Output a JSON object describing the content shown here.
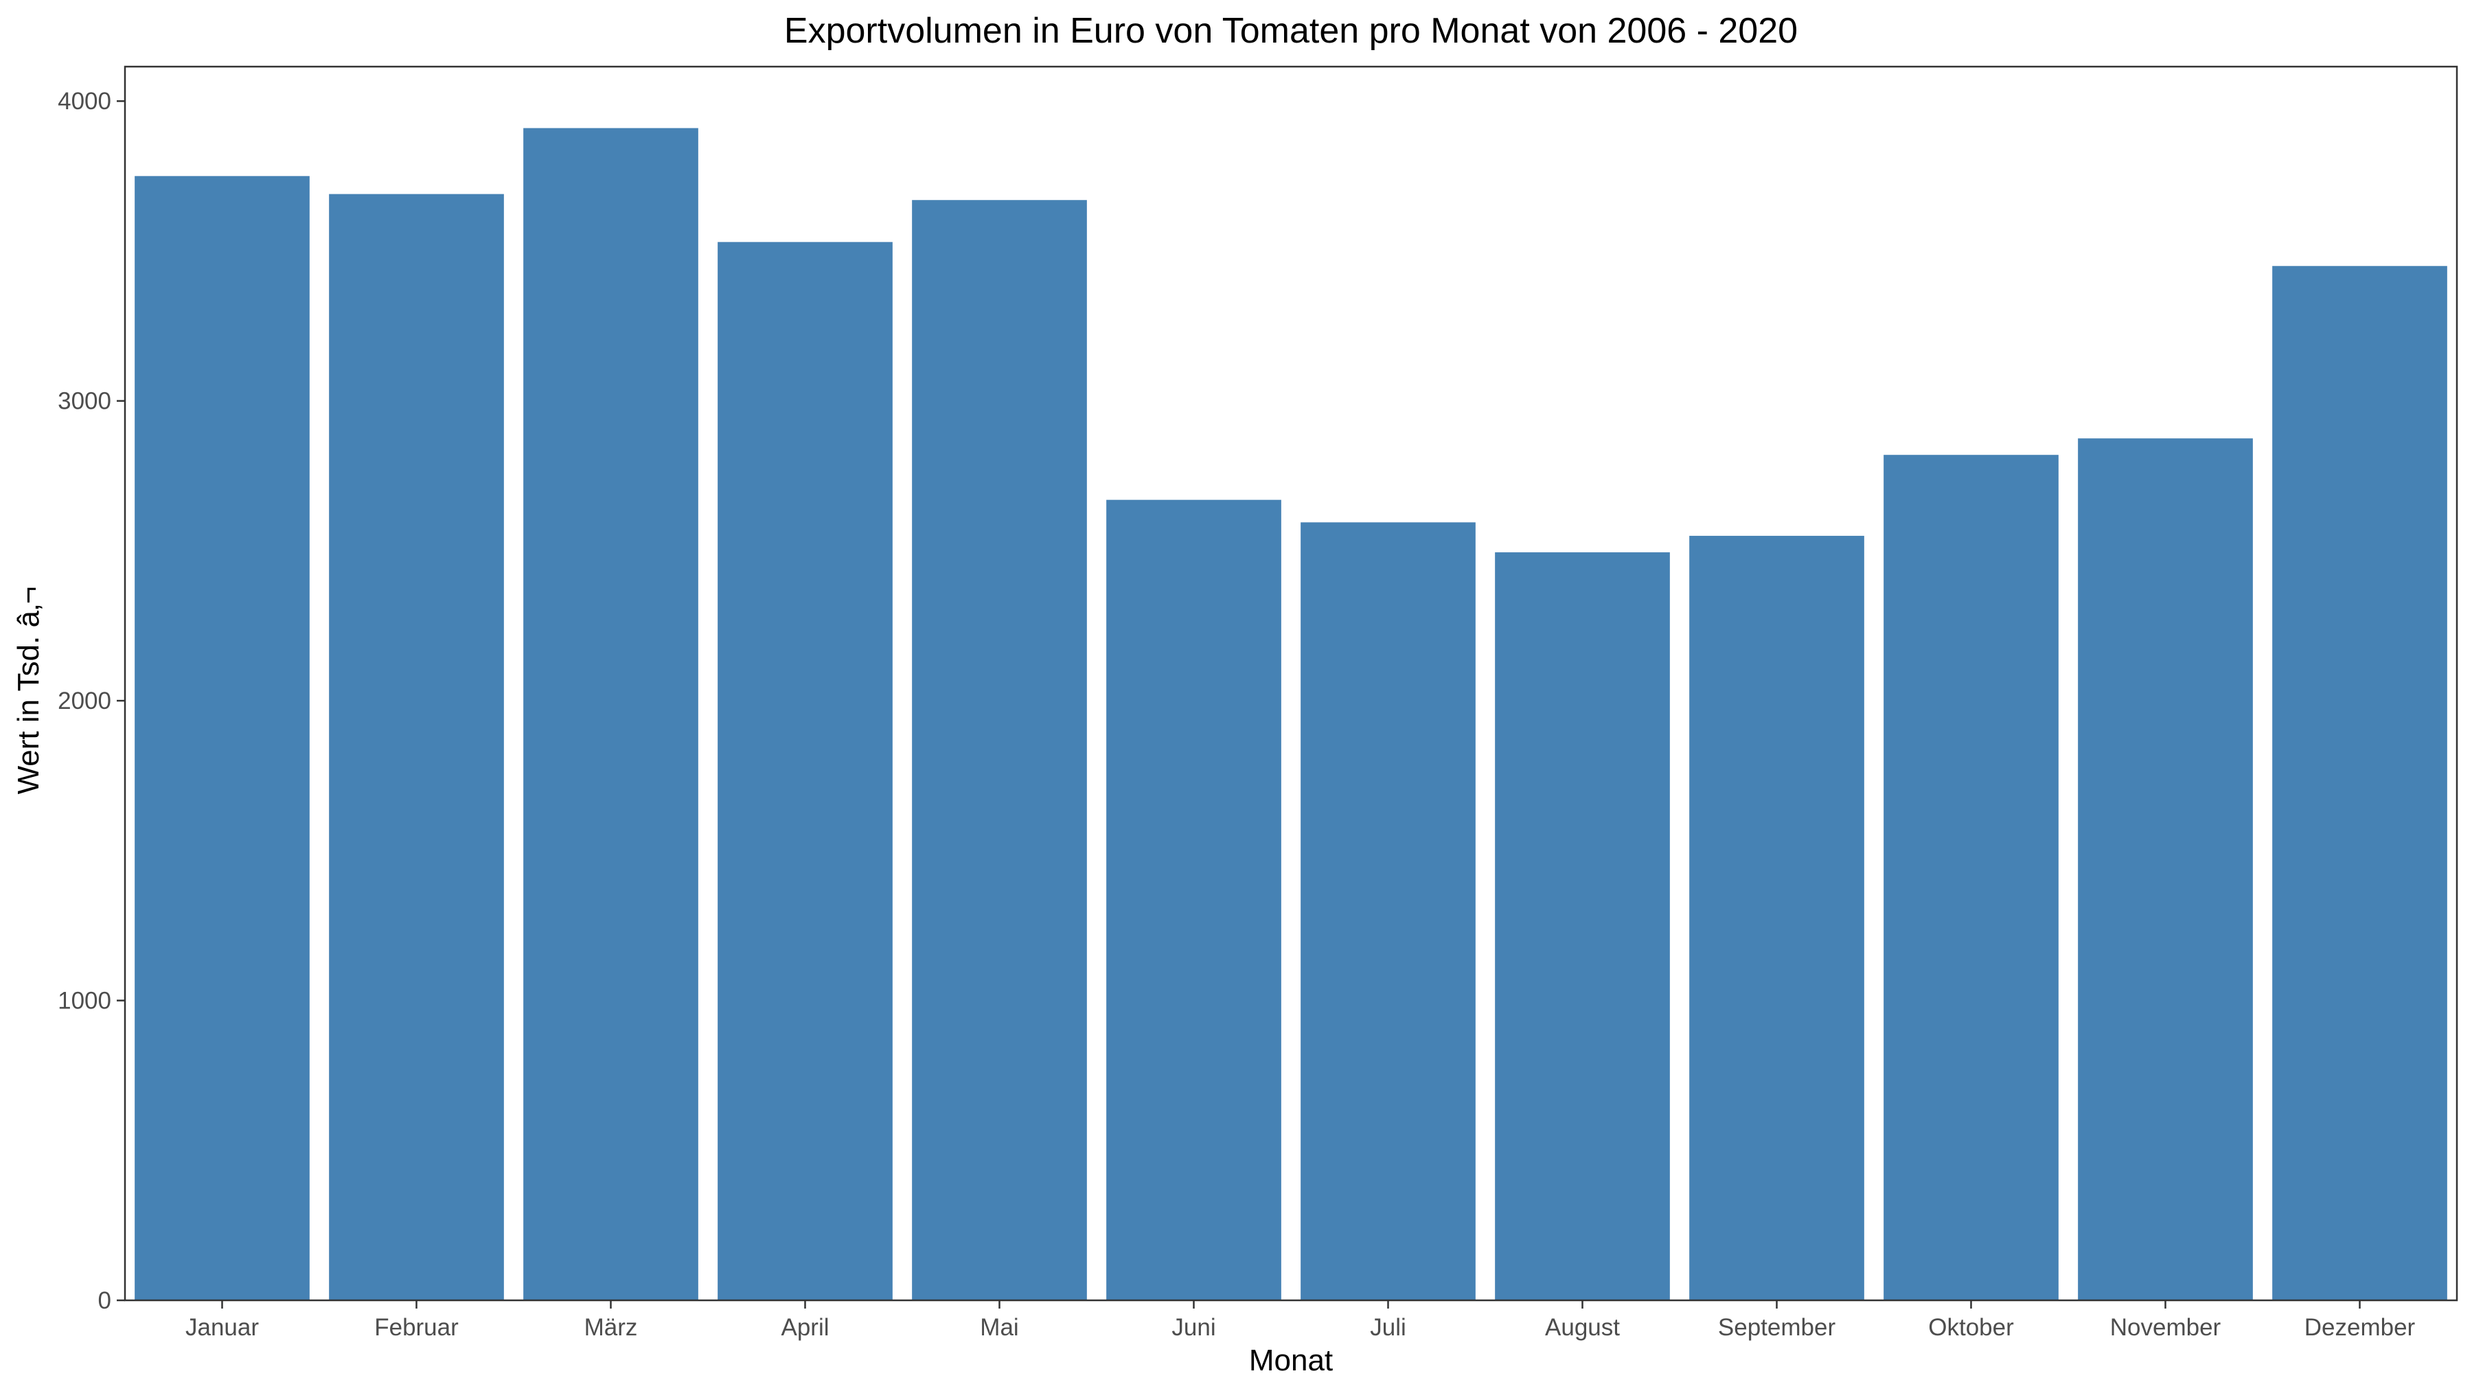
{
  "chart_data": {
    "type": "bar",
    "title": "Exportvolumen in Euro von Tomaten pro Monat von 2006 - 2020",
    "xlabel": "Monat",
    "ylabel": "Wert in Tsd. â‚¬",
    "categories": [
      "Januar",
      "Februar",
      "März",
      "April",
      "Mai",
      "Juni",
      "Juli",
      "August",
      "September",
      "Oktober",
      "November",
      "Dezember"
    ],
    "values": [
      3750,
      3690,
      3910,
      3530,
      3670,
      2670,
      2595,
      2495,
      2550,
      2820,
      2875,
      3450
    ],
    "ylim": [
      0,
      4115
    ],
    "yticks": [
      0,
      1000,
      2000,
      3000,
      4000
    ],
    "bar_color": "#4682b4",
    "grid": false,
    "legend": "none"
  }
}
